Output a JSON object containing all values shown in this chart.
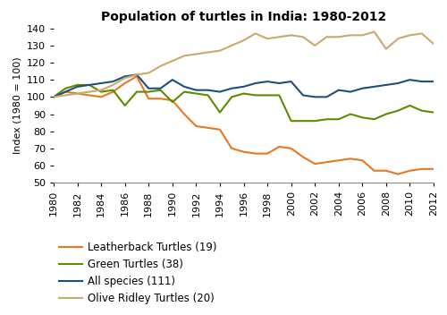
{
  "title": "Population of turtles in India: 1980-2012",
  "ylabel": "Index (1980 = 100)",
  "years": [
    1980,
    1981,
    1982,
    1983,
    1984,
    1985,
    1986,
    1987,
    1988,
    1989,
    1990,
    1991,
    1992,
    1993,
    1994,
    1995,
    1996,
    1997,
    1998,
    1999,
    2000,
    2001,
    2002,
    2003,
    2004,
    2005,
    2006,
    2007,
    2008,
    2009,
    2010,
    2011,
    2012
  ],
  "series": {
    "Leatherback Turtles (19)": {
      "color": "#E87722",
      "data": [
        100,
        103,
        102,
        101,
        100,
        103,
        108,
        112,
        99,
        99,
        98,
        90,
        83,
        82,
        81,
        70,
        68,
        67,
        67,
        71,
        70,
        65,
        61,
        62,
        63,
        64,
        63,
        57,
        57,
        55,
        57,
        58,
        58
      ]
    },
    "Green Turtles (38)": {
      "color": "#5B8C00",
      "data": [
        100,
        105,
        107,
        107,
        103,
        104,
        95,
        103,
        103,
        104,
        97,
        103,
        102,
        101,
        91,
        100,
        102,
        101,
        101,
        101,
        86,
        86,
        86,
        87,
        87,
        90,
        88,
        87,
        90,
        92,
        95,
        92,
        91
      ]
    },
    "All species (111)": {
      "color": "#1F4E79",
      "data": [
        100,
        103,
        106,
        107,
        108,
        109,
        112,
        113,
        105,
        105,
        110,
        106,
        104,
        104,
        103,
        105,
        106,
        108,
        109,
        108,
        109,
        101,
        100,
        100,
        104,
        103,
        105,
        106,
        107,
        108,
        110,
        109,
        109
      ]
    },
    "Olive Ridley Turtles (20)": {
      "color": "#C8A96E",
      "data": [
        100,
        101,
        102,
        103,
        104,
        107,
        111,
        113,
        114,
        118,
        121,
        124,
        125,
        126,
        127,
        130,
        133,
        137,
        134,
        135,
        136,
        135,
        130,
        135,
        135,
        136,
        136,
        138,
        128,
        134,
        136,
        137,
        131
      ]
    }
  },
  "ylim": [
    50,
    140
  ],
  "yticks": [
    50,
    60,
    70,
    80,
    90,
    100,
    110,
    120,
    130,
    140
  ],
  "xticks": [
    1980,
    1982,
    1984,
    1986,
    1988,
    1990,
    1992,
    1994,
    1996,
    1998,
    2000,
    2002,
    2004,
    2006,
    2008,
    2010,
    2012
  ],
  "legend_order": [
    "Leatherback Turtles (19)",
    "Green Turtles (38)",
    "All species (111)",
    "Olive Ridley Turtles (20)"
  ],
  "background_color": "#ffffff",
  "title_fontsize": 10,
  "axis_fontsize": 8,
  "legend_fontsize": 8.5,
  "linewidth": 1.5
}
